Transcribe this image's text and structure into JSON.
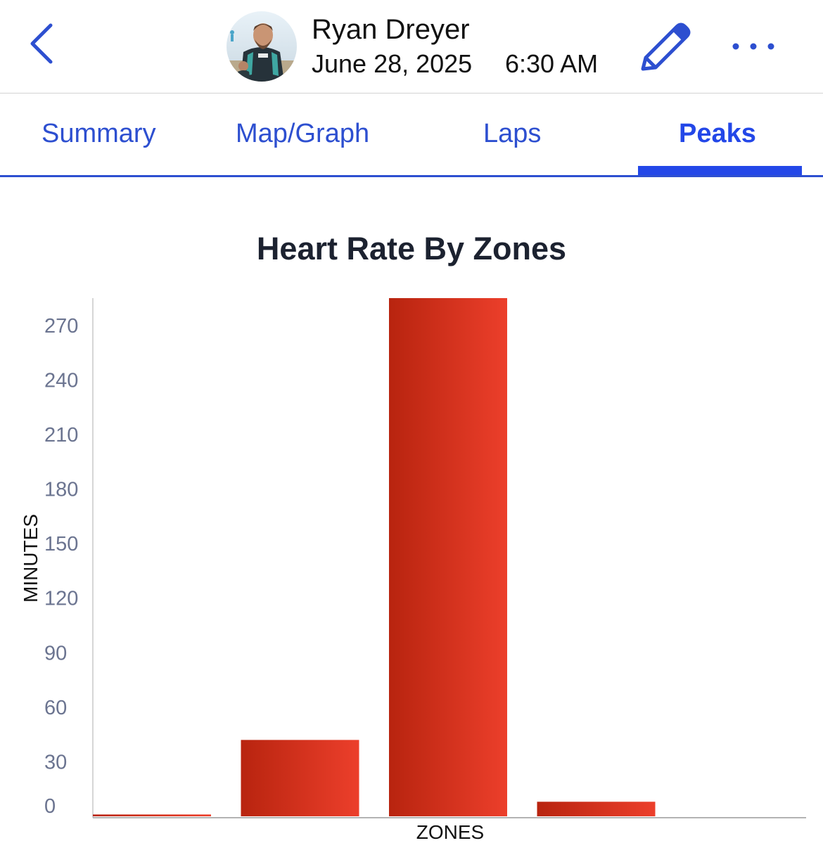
{
  "header": {
    "user_name": "Ryan Dreyer",
    "date": "June 28, 2025",
    "time": "6:30 AM",
    "back_icon": "chevron-left-icon",
    "edit_icon": "pencil-icon",
    "more_icon": "ellipsis-icon",
    "accent_color": "#2d4fd0"
  },
  "tabs": [
    {
      "label": "Summary",
      "active": false
    },
    {
      "label": "Map/Graph",
      "active": false
    },
    {
      "label": "Laps",
      "active": false
    },
    {
      "label": "Peaks",
      "active": true
    }
  ],
  "chart_data": {
    "type": "bar",
    "title": "Heart Rate By Zones",
    "xlabel": "ZONES",
    "ylabel": "MINUTES",
    "yticks": [
      0,
      30,
      60,
      90,
      120,
      150,
      180,
      210,
      240,
      270
    ],
    "ylim": [
      0,
      285
    ],
    "values": [
      1,
      42,
      285,
      8
    ],
    "bar_color_start": "#b8240f",
    "bar_color_end": "#ec3f2b",
    "grid": false
  }
}
